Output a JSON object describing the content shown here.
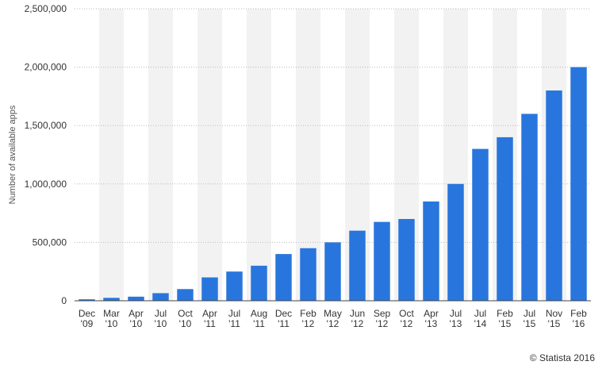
{
  "chart_data": {
    "type": "bar",
    "categories": [
      [
        "Dec",
        "'09"
      ],
      [
        "Mar",
        "'10"
      ],
      [
        "Apr",
        "'10"
      ],
      [
        "Jul",
        "'10"
      ],
      [
        "Oct",
        "'10"
      ],
      [
        "Apr",
        "'11"
      ],
      [
        "Jul",
        "'11"
      ],
      [
        "Aug",
        "'11"
      ],
      [
        "Dec",
        "'11"
      ],
      [
        "Feb",
        "'12"
      ],
      [
        "May",
        "'12"
      ],
      [
        "Jun",
        "'12"
      ],
      [
        "Sep",
        "'12"
      ],
      [
        "Oct",
        "'12"
      ],
      [
        "Apr",
        "'13"
      ],
      [
        "Jul",
        "'13"
      ],
      [
        "Jul",
        "'14"
      ],
      [
        "Feb",
        "'15"
      ],
      [
        "Jul",
        "'15"
      ],
      [
        "Nov",
        "'15"
      ],
      [
        "Feb",
        "'16"
      ]
    ],
    "values": [
      12500,
      25000,
      35000,
      65000,
      100000,
      200000,
      250000,
      300000,
      400000,
      450000,
      500000,
      600000,
      675000,
      700000,
      850000,
      1000000,
      1300000,
      1400000,
      1600000,
      1800000,
      2000000
    ],
    "ylabel": "Number of available apps",
    "ylim": [
      0,
      2500000
    ],
    "yticks": [
      "0",
      "500,000",
      "1,000,000",
      "1,500,000",
      "2,000,000",
      "2,500,000"
    ],
    "grid": true,
    "bar_color": "#2876dd",
    "band_color": "#f2f2f2"
  },
  "credit": "© Statista 2016"
}
